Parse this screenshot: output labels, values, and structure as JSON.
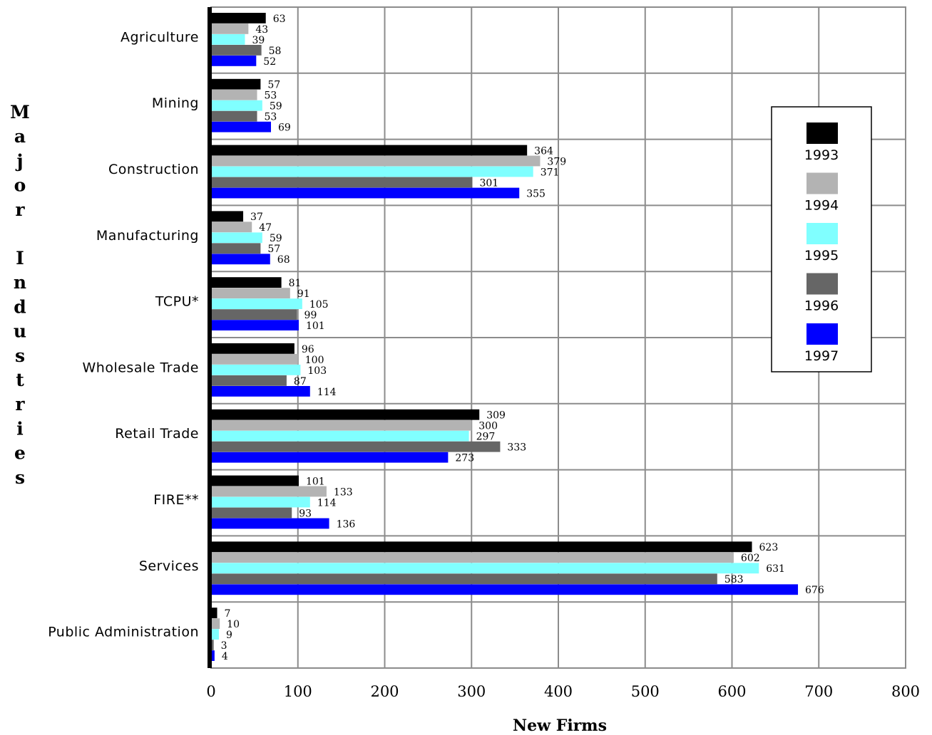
{
  "chart_data": {
    "type": "bar",
    "orientation": "horizontal",
    "title": "",
    "xlabel": "New Firms",
    "ylabel": "Major Industries",
    "xlim": [
      0,
      800
    ],
    "xticks": [
      "0",
      "100",
      "200",
      "300",
      "400",
      "500",
      "600",
      "700",
      "800"
    ],
    "grid": true,
    "legend_position": "right",
    "categories": [
      "Agriculture",
      "Mining",
      "Construction",
      "Manufacturing",
      "TCPU*",
      "Wholesale Trade",
      "Retail Trade",
      "FIRE**",
      "Services",
      "Public Administration"
    ],
    "series": [
      {
        "name": "1993",
        "color": "#000000",
        "values": [
          63,
          57,
          364,
          37,
          81,
          96,
          309,
          101,
          623,
          7
        ]
      },
      {
        "name": "1994",
        "color": "#b3b3b3",
        "values": [
          43,
          53,
          379,
          47,
          91,
          100,
          300,
          133,
          602,
          10
        ]
      },
      {
        "name": "1995",
        "color": "#80ffff",
        "values": [
          39,
          59,
          371,
          59,
          105,
          103,
          297,
          114,
          631,
          9
        ]
      },
      {
        "name": "1996",
        "color": "#666666",
        "values": [
          58,
          53,
          301,
          57,
          99,
          87,
          333,
          93,
          583,
          3
        ]
      },
      {
        "name": "1997",
        "color": "#0000ff",
        "values": [
          52,
          69,
          355,
          68,
          101,
          114,
          273,
          136,
          676,
          4
        ]
      }
    ]
  }
}
